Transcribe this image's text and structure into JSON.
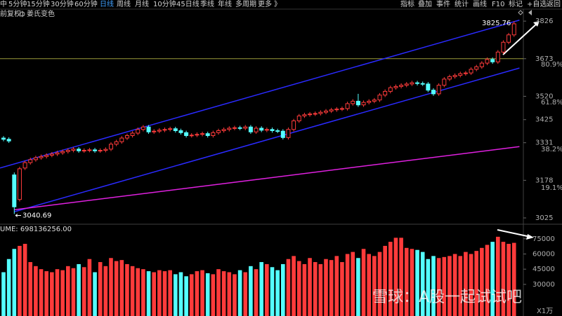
{
  "toolbar": {
    "periods": [
      "中",
      "5分钟",
      "15分钟",
      "30分钟",
      "60分钟",
      "日线",
      "周线",
      "月线",
      "10分钟",
      "45日线",
      "季线",
      "年线",
      "多周期",
      "更多 》"
    ],
    "tools": [
      "指标",
      "叠加",
      "事件",
      "统计",
      "画线",
      "F10",
      "标记",
      "+自选",
      "返回"
    ]
  },
  "options": [
    "前复权)",
    "姜氏变色"
  ],
  "watermark": "雪球：A股一起试试吧",
  "chart_data": [
    {
      "type": "candlestick",
      "up_color": "#ff3b3b",
      "down_color": "#54ffff",
      "ylim": [
        3005,
        3872
      ],
      "yticks": [
        3826,
        3673,
        3520,
        3425,
        3331,
        3178,
        3025
      ],
      "fib_labels": [
        {
          "value": 3649,
          "label": "80.9%"
        },
        {
          "value": 3495,
          "label": "61.8%"
        },
        {
          "value": 3304,
          "label": "38.2%"
        },
        {
          "value": 3148,
          "label": "19.1%"
        }
      ],
      "annotations": [
        {
          "value": 3825.76,
          "label": "3825.76"
        },
        {
          "value": 3040.69,
          "label": "3040.69"
        }
      ],
      "hlines": [
        {
          "value": 3673,
          "color": "#9a9a3a"
        }
      ],
      "trendlines": [
        {
          "color": "#2a2aff",
          "points": [
            [
              -0.65,
              3228
            ],
            [
              96,
              3830
            ]
          ]
        },
        {
          "color": "#2a2aff",
          "points": [
            [
              2,
              3050
            ],
            [
              96,
              3635
            ]
          ]
        },
        {
          "color": "#e020e0",
          "points": [
            [
              2,
              3058
            ],
            [
              96,
              3315
            ]
          ]
        }
      ],
      "open": [
        3350,
        3345,
        3200,
        3100,
        3228,
        3250,
        3262,
        3270,
        3275,
        3280,
        3285,
        3290,
        3295,
        3300,
        3305,
        3298,
        3300,
        3302,
        3298,
        3300,
        3305,
        3325,
        3335,
        3350,
        3360,
        3370,
        3385,
        3395,
        3375,
        3378,
        3382,
        3385,
        3388,
        3380,
        3372,
        3360,
        3362,
        3365,
        3368,
        3360,
        3372,
        3380,
        3385,
        3390,
        3392,
        3390,
        3395,
        3375,
        3390,
        3382,
        3385,
        3380,
        3378,
        3352,
        3385,
        3420,
        3440,
        3445,
        3448,
        3450,
        3455,
        3460,
        3465,
        3468,
        3470,
        3490,
        3500,
        3485,
        3495,
        3500,
        3505,
        3525,
        3540,
        3555,
        3560,
        3565,
        3570,
        3575,
        3572,
        3570,
        3545,
        3530,
        3565,
        3590,
        3600,
        3605,
        3612,
        3615,
        3630,
        3640,
        3655,
        3670,
        3660,
        3700,
        3740,
        3770
      ],
      "high": [
        3358,
        3353,
        3210,
        3233,
        3258,
        3270,
        3278,
        3283,
        3288,
        3293,
        3298,
        3303,
        3308,
        3313,
        3313,
        3308,
        3310,
        3310,
        3308,
        3312,
        3333,
        3343,
        3358,
        3368,
        3378,
        3393,
        3403,
        3403,
        3386,
        3390,
        3393,
        3396,
        3396,
        3388,
        3380,
        3370,
        3373,
        3376,
        3376,
        3380,
        3388,
        3393,
        3398,
        3400,
        3400,
        3403,
        3403,
        3398,
        3398,
        3393,
        3393,
        3388,
        3386,
        3393,
        3428,
        3448,
        3453,
        3456,
        3458,
        3463,
        3468,
        3473,
        3476,
        3478,
        3498,
        3508,
        3530,
        3503,
        3508,
        3513,
        3533,
        3548,
        3563,
        3568,
        3573,
        3578,
        3583,
        3583,
        3580,
        3578,
        3553,
        3573,
        3598,
        3608,
        3613,
        3620,
        3623,
        3638,
        3648,
        3663,
        3678,
        3678,
        3708,
        3748,
        3778,
        3825.76
      ],
      "low": [
        3337,
        3330,
        3040.69,
        3092,
        3220,
        3242,
        3254,
        3262,
        3267,
        3272,
        3277,
        3282,
        3287,
        3292,
        3290,
        3290,
        3292,
        3290,
        3290,
        3292,
        3297,
        3317,
        3327,
        3342,
        3352,
        3362,
        3377,
        3367,
        3367,
        3370,
        3374,
        3377,
        3372,
        3364,
        3352,
        3352,
        3354,
        3357,
        3352,
        3352,
        3364,
        3372,
        3377,
        3382,
        3382,
        3382,
        3367,
        3367,
        3374,
        3374,
        3372,
        3370,
        3344,
        3344,
        3377,
        3412,
        3432,
        3437,
        3440,
        3442,
        3447,
        3452,
        3457,
        3460,
        3462,
        3482,
        3477,
        3477,
        3487,
        3492,
        3497,
        3517,
        3532,
        3547,
        3552,
        3557,
        3562,
        3564,
        3562,
        3537,
        3522,
        3522,
        3557,
        3582,
        3592,
        3597,
        3604,
        3607,
        3622,
        3632,
        3647,
        3652,
        3652,
        3692,
        3732,
        3762
      ],
      "close": [
        3345,
        3338,
        3070,
        3225,
        3250,
        3262,
        3270,
        3275,
        3280,
        3285,
        3290,
        3295,
        3300,
        3305,
        3298,
        3300,
        3302,
        3298,
        3300,
        3304,
        3325,
        3335,
        3350,
        3360,
        3370,
        3385,
        3395,
        3375,
        3378,
        3382,
        3385,
        3388,
        3380,
        3372,
        3360,
        3362,
        3365,
        3368,
        3360,
        3372,
        3380,
        3385,
        3390,
        3392,
        3390,
        3395,
        3375,
        3390,
        3382,
        3385,
        3380,
        3378,
        3352,
        3385,
        3420,
        3440,
        3445,
        3448,
        3450,
        3455,
        3460,
        3465,
        3468,
        3470,
        3490,
        3500,
        3485,
        3495,
        3500,
        3505,
        3525,
        3540,
        3555,
        3560,
        3565,
        3570,
        3575,
        3572,
        3570,
        3545,
        3530,
        3565,
        3590,
        3600,
        3605,
        3612,
        3615,
        3630,
        3640,
        3655,
        3670,
        3660,
        3700,
        3740,
        3770,
        3815
      ]
    },
    {
      "type": "bar",
      "title": "UME: 698136256.00",
      "unit_label": "X1万",
      "ylim": [
        5000,
        88000
      ],
      "yticks": [
        75000,
        60000,
        45000,
        30000
      ],
      "values": [
        42000,
        55000,
        65000,
        68000,
        70000,
        52000,
        48000,
        45000,
        43000,
        42000,
        45000,
        44000,
        48000,
        46000,
        50000,
        47000,
        55000,
        42000,
        52000,
        48000,
        56000,
        53000,
        54000,
        50000,
        48000,
        46000,
        45000,
        43000,
        42000,
        44000,
        43000,
        44000,
        40000,
        42000,
        38000,
        40000,
        43000,
        44000,
        41000,
        40000,
        45000,
        43000,
        42000,
        40000,
        44000,
        42000,
        48000,
        45000,
        52000,
        50000,
        47000,
        44000,
        50000,
        55000,
        58000,
        53000,
        50000,
        56000,
        52000,
        50000,
        55000,
        54000,
        58000,
        52000,
        60000,
        62000,
        56000,
        65000,
        60000,
        58000,
        62000,
        68000,
        72000,
        76000,
        76000,
        66000,
        65000,
        64000,
        62000,
        55000,
        58000,
        56000,
        57000,
        58000,
        60000,
        58000,
        62000,
        60000,
        63000,
        66000,
        69000,
        72000,
        77000,
        72000,
        70000,
        71000
      ]
    }
  ]
}
